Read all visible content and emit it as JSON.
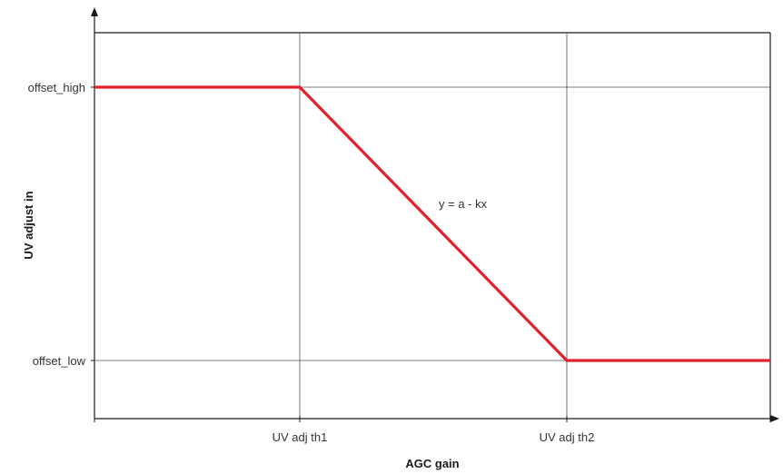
{
  "chart_data": {
    "type": "line",
    "title": "",
    "xlabel": "AGC gain",
    "ylabel": "UV adjust in",
    "x_ticks": [
      "UV adj th1",
      "UV adj th2"
    ],
    "y_ticks": [
      "offset_high",
      "offset_low"
    ],
    "grid": true,
    "legend": "none",
    "series": [
      {
        "color": "#e0202a",
        "points": [
          [
            "start",
            "offset_high"
          ],
          [
            "UV adj th1",
            "offset_high"
          ],
          [
            "UV adj th2",
            "offset_low"
          ],
          [
            "end",
            "offset_low"
          ]
        ]
      }
    ],
    "annotations": [
      {
        "text": "y = a - kx",
        "segment": "UV adj th1 to UV adj th2"
      }
    ]
  }
}
